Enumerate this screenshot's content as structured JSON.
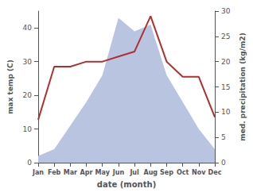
{
  "chart_data": {
    "type": "line",
    "xlabel": "date (month)",
    "ylabel": "max temp (C)",
    "y2label": "med. precipitation (kg/m2)",
    "categories": [
      "Jan",
      "Feb",
      "Mar",
      "Apr",
      "May",
      "Jun",
      "Jul",
      "Aug",
      "Sep",
      "Oct",
      "Nov",
      "Dec"
    ],
    "series": [
      {
        "type": "area",
        "color": "#b8c4e0",
        "values": [
          2,
          4,
          11,
          18,
          26,
          43,
          39,
          41,
          26,
          18,
          10,
          4
        ]
      },
      {
        "type": "line",
        "color": "#b03030",
        "axis": "y2",
        "values": [
          8.5,
          19,
          19,
          20,
          20,
          21,
          22,
          29,
          20,
          17,
          17,
          9
        ]
      }
    ],
    "ylim": [
      0,
      45
    ],
    "yticks": [
      0,
      10,
      20,
      30,
      40
    ],
    "y2lim": [
      0,
      30
    ],
    "y2ticks": [
      0,
      5,
      10,
      15,
      20,
      25,
      30
    ],
    "grid": false
  }
}
